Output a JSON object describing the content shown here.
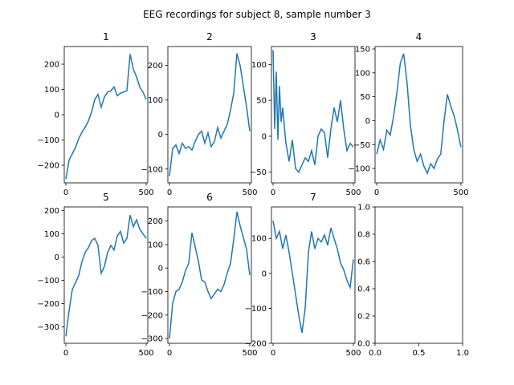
{
  "figure": {
    "suptitle": "EEG recordings for subject 8, sample number 3",
    "line_color": "#1f77b4"
  },
  "chart_data": [
    {
      "type": "line",
      "title": "1",
      "xlim": [
        -10,
        510
      ],
      "ylim": [
        -270,
        270
      ],
      "xticks": [
        0,
        500
      ],
      "yticks": [
        -200,
        -100,
        0,
        100,
        200
      ],
      "series": [
        {
          "x": [
            0,
            20,
            40,
            60,
            80,
            100,
            120,
            140,
            160,
            180,
            200,
            220,
            240,
            260,
            280,
            300,
            320,
            340,
            360,
            380,
            400,
            420,
            440,
            460,
            480,
            500
          ],
          "values": [
            -255,
            -180,
            -155,
            -130,
            -95,
            -70,
            -50,
            -25,
            10,
            60,
            80,
            30,
            70,
            90,
            95,
            110,
            75,
            85,
            90,
            95,
            240,
            180,
            150,
            110,
            90,
            60
          ]
        }
      ]
    },
    {
      "type": "line",
      "title": "2",
      "xlim": [
        -10,
        510
      ],
      "ylim": [
        -140,
        255
      ],
      "xticks": [
        0,
        500
      ],
      "yticks": [
        -100,
        0,
        100,
        200
      ],
      "series": [
        {
          "x": [
            0,
            20,
            40,
            60,
            80,
            100,
            120,
            140,
            160,
            180,
            200,
            220,
            240,
            260,
            280,
            300,
            320,
            340,
            360,
            380,
            400,
            420,
            440,
            460,
            480,
            500
          ],
          "values": [
            -120,
            -40,
            -30,
            -55,
            -25,
            -40,
            -35,
            -45,
            -20,
            0,
            10,
            -25,
            5,
            -35,
            -20,
            20,
            -10,
            10,
            30,
            70,
            120,
            235,
            200,
            140,
            80,
            10
          ]
        }
      ]
    },
    {
      "type": "line",
      "title": "3",
      "xlim": [
        -10,
        510
      ],
      "ylim": [
        -65,
        125
      ],
      "xticks": [
        0,
        500
      ],
      "yticks": [
        -50,
        0,
        50,
        100
      ],
      "series": [
        {
          "x": [
            0,
            10,
            20,
            30,
            40,
            50,
            60,
            80,
            100,
            120,
            140,
            160,
            180,
            200,
            220,
            240,
            260,
            280,
            300,
            320,
            340,
            360,
            380,
            400,
            420,
            440,
            460,
            480,
            500
          ],
          "values": [
            120,
            10,
            90,
            -5,
            70,
            20,
            40,
            -10,
            -35,
            -5,
            -45,
            -50,
            -40,
            -30,
            -35,
            -20,
            -40,
            0,
            10,
            5,
            -30,
            10,
            40,
            20,
            50,
            10,
            -20,
            -10,
            -15
          ]
        }
      ]
    },
    {
      "type": "line",
      "title": "4",
      "xlim": [
        -10,
        510
      ],
      "ylim": [
        -130,
        155
      ],
      "xticks": [
        0,
        500
      ],
      "yticks": [
        -100,
        -50,
        0,
        50,
        100,
        150
      ],
      "series": [
        {
          "x": [
            0,
            20,
            40,
            60,
            80,
            100,
            120,
            140,
            160,
            180,
            200,
            220,
            240,
            260,
            280,
            300,
            320,
            340,
            360,
            380,
            400,
            420,
            440,
            460,
            480,
            500
          ],
          "values": [
            -70,
            -40,
            -60,
            -20,
            -30,
            10,
            60,
            120,
            140,
            80,
            -10,
            -60,
            -85,
            -70,
            -95,
            -110,
            -90,
            -100,
            -80,
            -70,
            0,
            55,
            30,
            10,
            -20,
            -55
          ]
        }
      ]
    },
    {
      "type": "line",
      "title": "5",
      "xlim": [
        -10,
        510
      ],
      "ylim": [
        -370,
        215
      ],
      "xticks": [
        0,
        500
      ],
      "yticks": [
        -300,
        -200,
        -100,
        0,
        100,
        200
      ],
      "series": [
        {
          "x": [
            0,
            20,
            40,
            60,
            80,
            100,
            120,
            140,
            160,
            180,
            200,
            220,
            240,
            260,
            280,
            300,
            320,
            340,
            360,
            380,
            400,
            420,
            440,
            460,
            480,
            500
          ],
          "values": [
            -340,
            -230,
            -140,
            -110,
            -80,
            -20,
            20,
            40,
            70,
            80,
            50,
            -70,
            -40,
            20,
            50,
            30,
            90,
            110,
            60,
            80,
            180,
            130,
            160,
            120,
            100,
            80
          ]
        }
      ]
    },
    {
      "type": "line",
      "title": "6",
      "xlim": [
        -10,
        510
      ],
      "ylim": [
        -320,
        260
      ],
      "xticks": [
        0,
        500
      ],
      "yticks": [
        -300,
        -200,
        -100,
        0,
        100,
        200
      ],
      "series": [
        {
          "x": [
            0,
            20,
            40,
            60,
            80,
            100,
            120,
            140,
            160,
            180,
            200,
            220,
            240,
            260,
            280,
            300,
            320,
            340,
            360,
            380,
            400,
            420,
            440,
            460,
            480,
            500
          ],
          "values": [
            -300,
            -150,
            -100,
            -90,
            -60,
            -10,
            20,
            150,
            90,
            30,
            -50,
            -60,
            -100,
            -130,
            -110,
            -90,
            -100,
            -70,
            -20,
            20,
            120,
            240,
            180,
            130,
            80,
            -30
          ]
        }
      ]
    },
    {
      "type": "line",
      "title": "7",
      "xlim": [
        -10,
        510
      ],
      "ylim": [
        -200,
        190
      ],
      "xticks": [
        0,
        500
      ],
      "yticks": [
        -200,
        -100,
        0,
        100
      ],
      "series": [
        {
          "x": [
            0,
            20,
            40,
            60,
            80,
            100,
            120,
            140,
            160,
            180,
            200,
            220,
            240,
            260,
            280,
            300,
            320,
            340,
            360,
            380,
            400,
            420,
            440,
            460,
            480,
            500
          ],
          "values": [
            150,
            100,
            120,
            70,
            110,
            60,
            0,
            -60,
            -120,
            -170,
            -100,
            60,
            120,
            70,
            100,
            90,
            110,
            80,
            130,
            100,
            70,
            30,
            10,
            -20,
            -40,
            40
          ]
        }
      ]
    },
    {
      "type": "line",
      "title": "",
      "xlim": [
        0,
        1
      ],
      "ylim": [
        0,
        1
      ],
      "xticks": [
        "0.0",
        "0.5",
        "1.0"
      ],
      "yticks": [
        "0.0",
        "0.2",
        "0.4",
        "0.6",
        "0.8",
        "1.0"
      ],
      "series": []
    }
  ]
}
